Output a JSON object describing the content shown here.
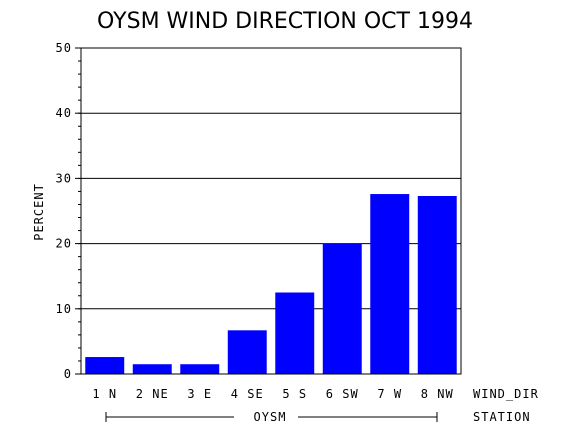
{
  "chart_data": {
    "type": "bar",
    "title": "OYSM WIND DIRECTION OCT 1994",
    "ylabel": "PERCENT",
    "xlabel": "WIND_DIR",
    "group_label": "STATION",
    "group_name": "OYSM",
    "ylim": [
      0,
      50
    ],
    "yticks": [
      "0",
      "10",
      "20",
      "30",
      "40",
      "50"
    ],
    "gridlines": true,
    "categories": [
      "1 N",
      "2 NE",
      "3 E",
      "4 SE",
      "5 S",
      "6 SW",
      "7 W",
      "8 NW"
    ],
    "values": [
      2.6,
      1.5,
      1.5,
      6.7,
      12.5,
      20.0,
      27.6,
      27.3
    ],
    "bar_color": "#0000ff"
  }
}
